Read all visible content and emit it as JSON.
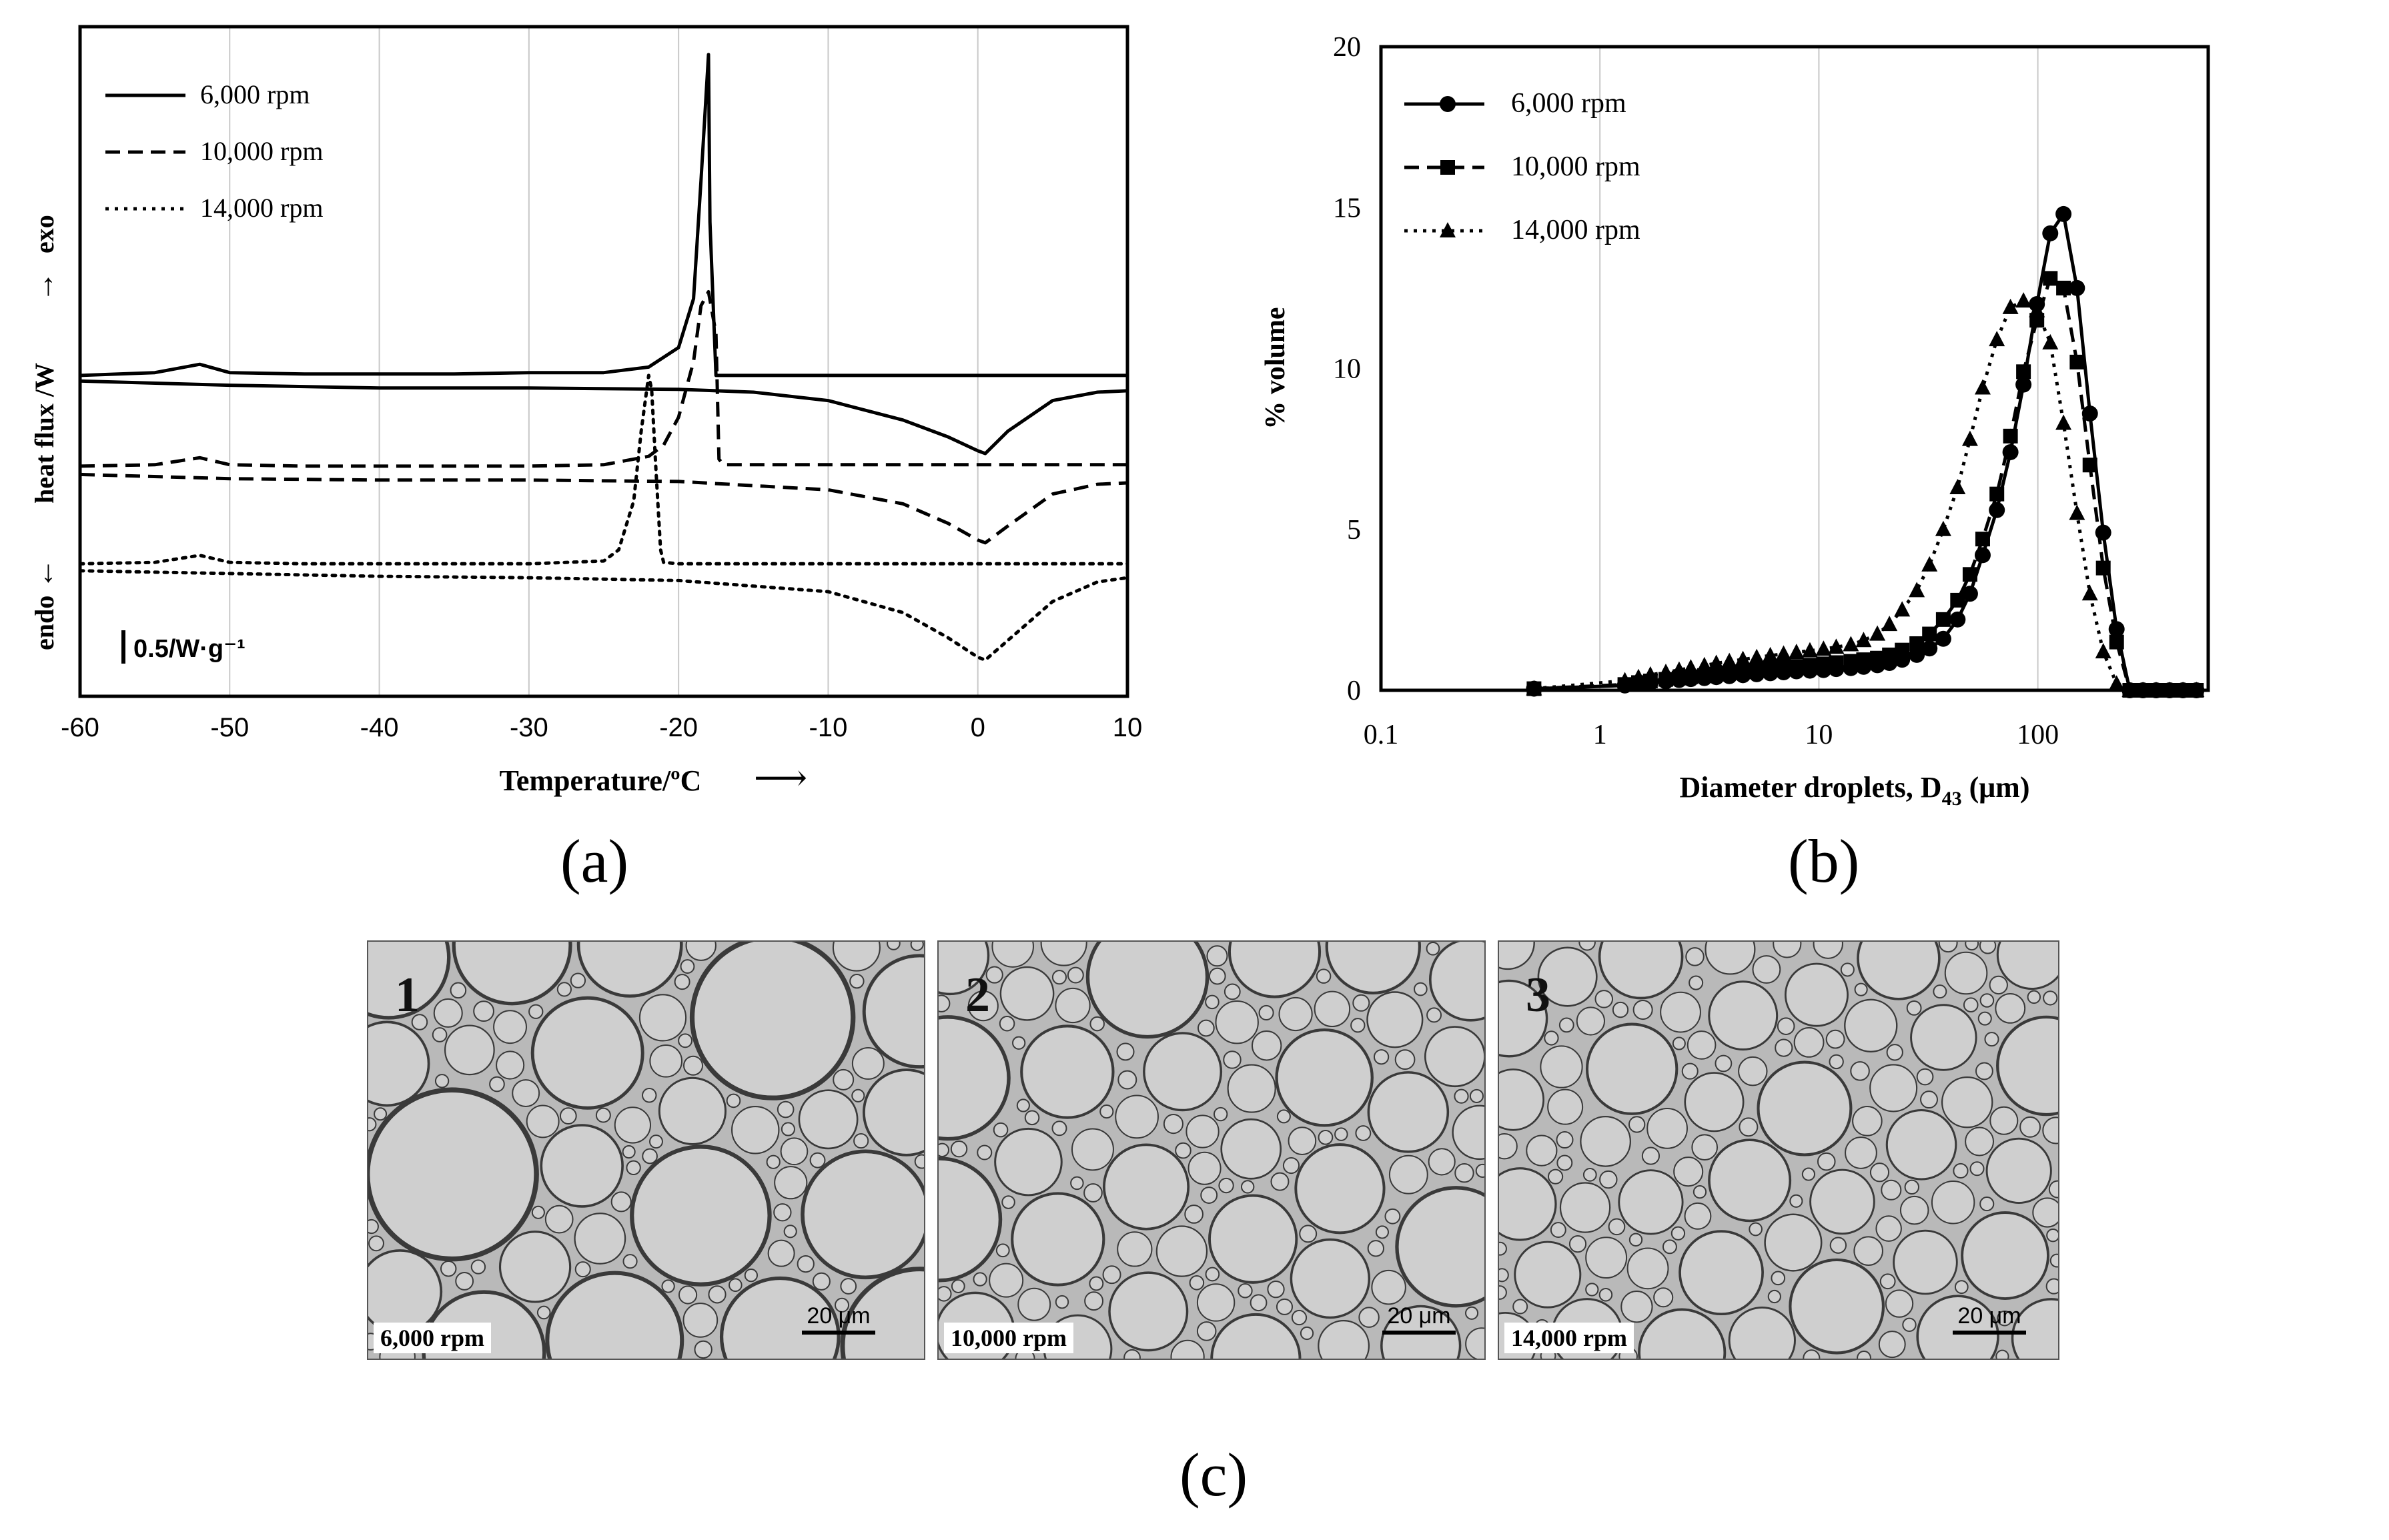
{
  "chart_data": [
    {
      "panel": "(a)",
      "type": "line",
      "title": "",
      "xlabel": "Temperature/ºC",
      "ylabel_top": "exo",
      "ylabel_mid": "heat flux /W",
      "ylabel_bottom": "endo",
      "scale_label": "0.5/W·g⁻¹",
      "xlim": [
        -60,
        10
      ],
      "xticks": [
        -60,
        -50,
        -40,
        -30,
        -20,
        -10,
        0,
        10
      ],
      "legend": [
        "6,000 rpm",
        "10,000 rpm",
        "14,000 rpm"
      ],
      "legend_position": "top-left",
      "series": [
        {
          "name": "6,000 rpm",
          "style": "solid",
          "cooling": {
            "x": [
              -60,
              -55,
              -52,
              -50,
              -45,
              -40,
              -35,
              -30,
              -25,
              -22,
              -20,
              -19,
              -18.5,
              -18,
              -17.9,
              -17.5,
              -15,
              -10,
              0,
              10
            ],
            "y": [
              1.3,
              1.32,
              1.38,
              1.32,
              1.31,
              1.31,
              1.31,
              1.32,
              1.32,
              1.36,
              1.5,
              1.85,
              2.7,
              3.6,
              2.4,
              1.3,
              1.3,
              1.3,
              1.3,
              1.3
            ]
          },
          "heating": {
            "x": [
              -60,
              -50,
              -40,
              -35,
              -30,
              -20,
              -15,
              -10,
              -5,
              -2,
              0,
              0.5,
              2,
              5,
              8,
              10
            ],
            "y": [
              1.26,
              1.23,
              1.21,
              1.21,
              1.21,
              1.2,
              1.18,
              1.12,
              0.98,
              0.86,
              0.76,
              0.74,
              0.9,
              1.12,
              1.18,
              1.19
            ]
          }
        },
        {
          "name": "10,000 rpm",
          "style": "dashed",
          "cooling": {
            "x": [
              -60,
              -55,
              -52,
              -50,
              -45,
              -40,
              -30,
              -25,
              -22,
              -21,
              -20,
              -19,
              -18.5,
              -18,
              -17.5,
              -17.3,
              -17,
              -15,
              -10,
              0,
              10
            ],
            "y": [
              0.65,
              0.66,
              0.71,
              0.66,
              0.65,
              0.65,
              0.65,
              0.66,
              0.72,
              0.8,
              1.0,
              1.4,
              1.8,
              1.9,
              1.6,
              0.7,
              0.66,
              0.66,
              0.66,
              0.66,
              0.66
            ]
          },
          "heating": {
            "x": [
              -60,
              -50,
              -40,
              -30,
              -20,
              -10,
              -5,
              -2,
              0,
              0.5,
              2,
              5,
              8,
              10
            ],
            "y": [
              0.59,
              0.56,
              0.55,
              0.55,
              0.54,
              0.48,
              0.38,
              0.24,
              0.12,
              0.1,
              0.22,
              0.45,
              0.52,
              0.53
            ]
          }
        },
        {
          "name": "14,000 rpm",
          "style": "dotted",
          "cooling": {
            "x": [
              -60,
              -55,
              -52,
              -50,
              -45,
              -40,
              -30,
              -25,
              -24,
              -23,
              -22.5,
              -22,
              -21.8,
              -21.5,
              -21.2,
              -21,
              -20,
              -10,
              0,
              10
            ],
            "y": [
              -0.05,
              -0.04,
              0.01,
              -0.04,
              -0.05,
              -0.05,
              -0.05,
              -0.03,
              0.05,
              0.4,
              0.9,
              1.3,
              1.2,
              0.6,
              0.05,
              -0.04,
              -0.05,
              -0.05,
              -0.05,
              -0.05
            ]
          },
          "heating": {
            "x": [
              -60,
              -50,
              -40,
              -30,
              -20,
              -10,
              -5,
              -2,
              0,
              0.5,
              2,
              5,
              8,
              10
            ],
            "y": [
              -0.1,
              -0.12,
              -0.14,
              -0.15,
              -0.17,
              -0.25,
              -0.4,
              -0.58,
              -0.72,
              -0.74,
              -0.6,
              -0.32,
              -0.18,
              -0.15
            ]
          }
        }
      ]
    },
    {
      "panel": "(b)",
      "type": "line",
      "title": "",
      "xlabel_main": "Diameter droplets, D",
      "xlabel_sub": "43",
      "xlabel_unit": " (μm)",
      "ylabel": "% volume",
      "xscale": "log",
      "xlim": [
        0.1,
        600
      ],
      "ylim": [
        0,
        20
      ],
      "xticks": [
        0.1,
        1,
        10,
        100
      ],
      "xtick_labels": [
        "0.1",
        "1",
        "10",
        "100"
      ],
      "yticks": [
        0,
        5,
        10,
        15,
        20
      ],
      "legend_position": "top-left",
      "x": [
        0.5,
        1.3,
        1.5,
        1.7,
        2.0,
        2.3,
        2.6,
        3.0,
        3.4,
        3.9,
        4.5,
        5.2,
        6.0,
        6.9,
        7.9,
        9.1,
        10.5,
        12,
        14,
        16,
        18.5,
        21,
        24,
        28,
        32,
        37,
        43,
        49,
        56,
        65,
        75,
        86,
        99,
        114,
        131,
        151,
        173,
        199,
        229,
        263,
        302,
        347,
        400,
        460,
        530
      ],
      "series": [
        {
          "name": "6,000 rpm",
          "marker": "circle",
          "style": "solid",
          "values": [
            0.05,
            0.15,
            0.2,
            0.24,
            0.28,
            0.32,
            0.35,
            0.38,
            0.41,
            0.44,
            0.47,
            0.5,
            0.53,
            0.56,
            0.59,
            0.61,
            0.63,
            0.66,
            0.69,
            0.73,
            0.78,
            0.85,
            0.95,
            1.1,
            1.3,
            1.6,
            2.2,
            3.0,
            4.2,
            5.6,
            7.4,
            9.5,
            12.0,
            14.2,
            14.8,
            12.5,
            8.6,
            4.9,
            1.9,
            0.0,
            0.0,
            0.0,
            0.0,
            0.0,
            0.0
          ]
        },
        {
          "name": "10,000 rpm",
          "marker": "square",
          "style": "dashed",
          "values": [
            0.05,
            0.18,
            0.24,
            0.29,
            0.34,
            0.38,
            0.42,
            0.46,
            0.5,
            0.54,
            0.58,
            0.62,
            0.66,
            0.7,
            0.74,
            0.78,
            0.82,
            0.86,
            0.9,
            0.95,
            1.0,
            1.1,
            1.25,
            1.45,
            1.75,
            2.2,
            2.8,
            3.6,
            4.7,
            6.1,
            7.9,
            9.9,
            11.5,
            12.8,
            12.5,
            10.2,
            7.0,
            3.8,
            1.5,
            0.0,
            0.0,
            0.0,
            0.0,
            0.0,
            0.0
          ]
        },
        {
          "name": "14,000 rpm",
          "marker": "triangle",
          "style": "dotted",
          "values": [
            0.05,
            0.3,
            0.4,
            0.48,
            0.56,
            0.63,
            0.7,
            0.77,
            0.84,
            0.9,
            0.96,
            1.02,
            1.08,
            1.13,
            1.18,
            1.23,
            1.28,
            1.34,
            1.42,
            1.55,
            1.75,
            2.05,
            2.5,
            3.1,
            3.9,
            5.0,
            6.3,
            7.8,
            9.4,
            10.9,
            11.9,
            12.1,
            11.8,
            10.8,
            8.3,
            5.5,
            3.0,
            1.2,
            0.2,
            0.0,
            0.0,
            0.0,
            0.0,
            0.0,
            0.0
          ]
        }
      ]
    }
  ],
  "labels": {
    "a": "(a)",
    "b": "(b)",
    "c": "(c)"
  },
  "micrographs": [
    {
      "number": "1",
      "speed": "6,000 rpm",
      "scale": "20 μm"
    },
    {
      "number": "2",
      "speed": "10,000 rpm",
      "scale": "20 μm"
    },
    {
      "number": "3",
      "speed": "14,000 rpm",
      "scale": "20 μm"
    }
  ]
}
